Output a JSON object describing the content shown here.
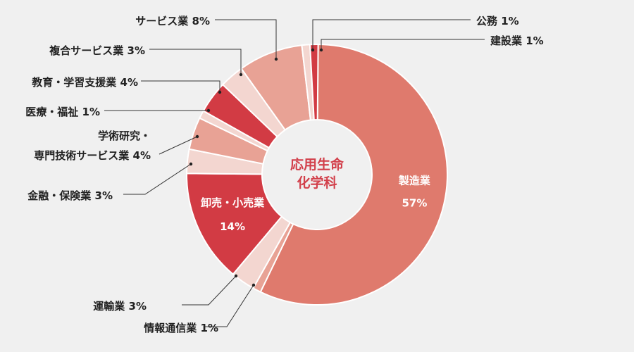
{
  "chart_data": {
    "type": "pie",
    "style": "donut",
    "center_label": [
      "応用生命",
      "化学科"
    ],
    "colors": {
      "center_text": "#d2404b",
      "separator": "#ffffff"
    },
    "slices": [
      {
        "label": "製造業",
        "value": 57,
        "value_text": "57%",
        "color": "#df7a6d"
      },
      {
        "label": "情報通信業",
        "value": 1,
        "value_text": "1%",
        "color": "#e8a295"
      },
      {
        "label": "運輸業",
        "value": 3,
        "value_text": "3%",
        "color": "#f3d6d0"
      },
      {
        "label": "卸売・小売業",
        "value": 14,
        "value_text": "14%",
        "color": "#d23b44"
      },
      {
        "label": "金融・保険業",
        "value": 3,
        "value_text": "3%",
        "color": "#f3d6d0"
      },
      {
        "label": [
          "学術研究・",
          "専門技術サービス業"
        ],
        "value": 4,
        "value_text": "4%",
        "color": "#e8a295"
      },
      {
        "label": "医療・福祉",
        "value": 1,
        "value_text": "1%",
        "color": "#f3d6d0"
      },
      {
        "label": "教育・学習支援業",
        "value": 4,
        "value_text": "4%",
        "color": "#d23b44"
      },
      {
        "label": "複合サービス業",
        "value": 3,
        "value_text": "3%",
        "color": "#f3d6d0"
      },
      {
        "label": "サービス業",
        "value": 8,
        "value_text": "8%",
        "color": "#e8a295"
      },
      {
        "label": "公務",
        "value": 1,
        "value_text": "1%",
        "color": "#f3d6d0"
      },
      {
        "label": "建設業",
        "value": 1,
        "value_text": "1%",
        "color": "#d23b44"
      }
    ]
  }
}
